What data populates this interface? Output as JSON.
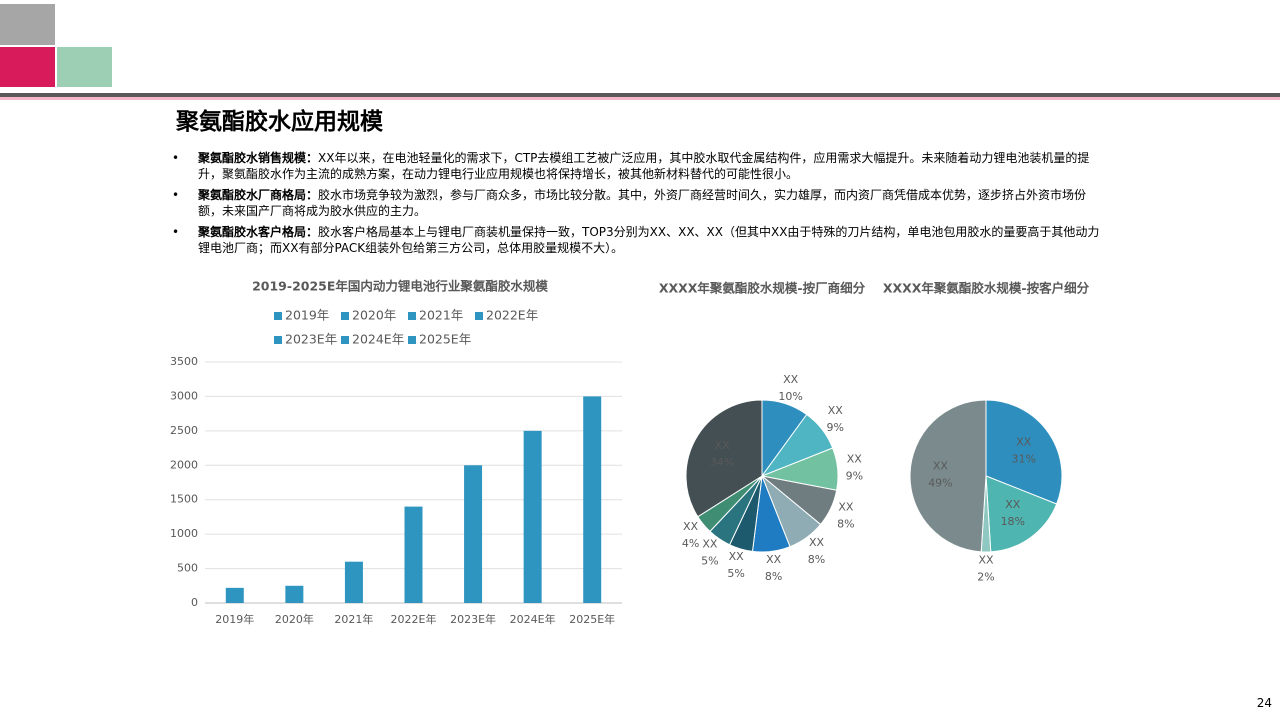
{
  "slide": {
    "title": "聚氨酯胶水应用规模",
    "bullets": [
      {
        "head": "聚氨酯胶水销售规模：",
        "text": "XX年以来，在电池轻量化的需求下，CTP去模组工艺被广泛应用，其中胶水取代金属结构件，应用需求大幅提升。未来随着动力锂电池装机量的提升，聚氨酯胶水作为主流的成熟方案，在动力锂电行业应用规模也将保持增长，被其他新材料替代的可能性很小。"
      },
      {
        "head": "聚氨酯胶水厂商格局：",
        "text": "胶水市场竞争较为激烈，参与厂商众多，市场比较分散。其中，外资厂商经营时间久，实力雄厚，而内资厂商凭借成本优势，逐步挤占外资市场份额，未来国产厂商将成为胶水供应的主力。"
      },
      {
        "head": "聚氨酯胶水客户格局：",
        "text": "胶水客户格局基本上与锂电厂商装机量保持一致，TOP3分别为XX、XX、XX（但其中XX由于特殊的刀片结构，单电池包用胶水的量要高于其他动力锂电池厂商；而XX有部分PACK组装外包给第三方公司，总体用胶量规模不大）。"
      }
    ],
    "page_number": "24"
  },
  "chart_data": [
    {
      "type": "bar",
      "title": "2019-2025E年国内动力锂电池行业聚氨酯胶水规模",
      "categories": [
        "2019年",
        "2020年",
        "2021年",
        "2022E年",
        "2023E年",
        "2024E年",
        "2025E年"
      ],
      "values": [
        220,
        250,
        600,
        1400,
        2000,
        2500,
        3000
      ],
      "color": "#2e95c0",
      "ylim": [
        0,
        3500
      ],
      "yticks": [
        0,
        500,
        1000,
        1500,
        2000,
        2500,
        3000,
        3500
      ],
      "grid": true
    },
    {
      "type": "pie",
      "title": "XXXX年聚氨酯胶水规模-按厂商细分",
      "categories": [
        "XX",
        "XX",
        "XX",
        "XX",
        "XX",
        "XX",
        "XX",
        "XX",
        "XX",
        "XX"
      ],
      "values": [
        10,
        9,
        9,
        8,
        8,
        8,
        5,
        5,
        4,
        34
      ],
      "value_labels": [
        "10%",
        "9%",
        "9%",
        "8%",
        "8%",
        "8%",
        "5%",
        "5%",
        "4%",
        "34%"
      ],
      "colors": [
        "#2e8fbf",
        "#4fb5c2",
        "#72c2a2",
        "#6f7d80",
        "#8fabb3",
        "#1f7cc2",
        "#1d5a6e",
        "#2a7480",
        "#3f8e74",
        "#434f52"
      ]
    },
    {
      "type": "pie",
      "title": "XXXX年聚氨酯胶水规模-按客户细分",
      "categories": [
        "XX",
        "XX",
        "XX",
        "XX"
      ],
      "values": [
        31,
        18,
        2,
        49
      ],
      "value_labels": [
        "31%",
        "18%",
        "2%",
        "49%"
      ],
      "colors": [
        "#2e8fbf",
        "#4fb5b0",
        "#8fc8c0",
        "#7b8b8d"
      ]
    }
  ]
}
